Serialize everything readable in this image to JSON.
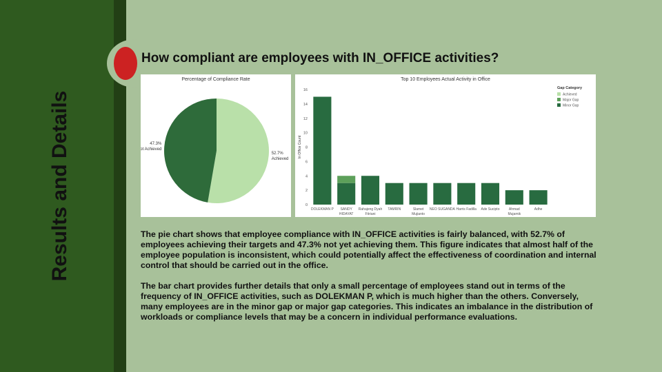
{
  "sidebar": {
    "title": "Results and Details"
  },
  "slide": {
    "title": "How compliant are employees with IN_OFFICE activities?"
  },
  "colors": {
    "background": "#a8c19a",
    "sidebar": "#2f5a1f",
    "accent_dot": "#cc2222",
    "achieved": "#b9e0a9",
    "not_achieved": "#2e6b3a",
    "major_gap": "#5da05a",
    "minor_gap": "#286b40"
  },
  "chart_data": [
    {
      "type": "pie",
      "title": "Percentage of Compliance Rate",
      "slices": [
        {
          "pct_label": "52.7%",
          "label": "Achieved",
          "value": 52.7
        },
        {
          "pct_label": "47.3%",
          "label": "Not Achieved",
          "value": 47.3
        }
      ]
    },
    {
      "type": "bar",
      "stacked": true,
      "title": "Top 10 Employees Actual Activity in Office",
      "ylabel": "In Office Count",
      "ylim": [
        0,
        16
      ],
      "yticks": [
        "0",
        "2",
        "4",
        "6",
        "8",
        "10",
        "12",
        "14",
        "16"
      ],
      "categories": [
        [
          "DOLEKMAN P"
        ],
        [
          "SANDY",
          "HIDAYAT"
        ],
        [
          "Rahajeng Dyah",
          "Fitriani"
        ],
        [
          "TAMRIN"
        ],
        [
          "Slamet",
          "Mujianto"
        ],
        [
          "NEO SUGANDA"
        ],
        [
          "Harris Fadilla"
        ],
        [
          "Ade Sucipto"
        ],
        [
          "Ahmad",
          "Mujamik"
        ],
        [
          "Adhe"
        ]
      ],
      "series": [
        {
          "name": "Minor Gap",
          "values": [
            15,
            3,
            4,
            3,
            3,
            3,
            3,
            3,
            2,
            2
          ]
        },
        {
          "name": "Major Gap",
          "values": [
            0,
            1,
            0,
            0,
            0,
            0,
            0,
            0,
            0,
            0
          ]
        }
      ],
      "legend": {
        "title": "Gap Category",
        "position": "top-right",
        "entries": [
          "Achieved",
          "Major Gap",
          "Minor Gap"
        ]
      }
    }
  ],
  "body": {
    "paragraph1": "The pie chart shows that employee compliance with IN_OFFICE activities is fairly balanced, with 52.7% of employees achieving their targets and 47.3% not yet achieving them. This figure indicates that almost half of the employee population is inconsistent, which could potentially affect the effectiveness of coordination and internal control that should be carried out in the office.",
    "paragraph2": "The bar chart provides further details that only a small percentage of employees stand out in terms of the frequency of IN_OFFICE activities, such as DOLEKMAN P, which is much higher than the others. Conversely, many employees are in the minor gap or major gap categories. This indicates an imbalance in the distribution of workloads or compliance levels that may be a concern in individual performance evaluations."
  }
}
